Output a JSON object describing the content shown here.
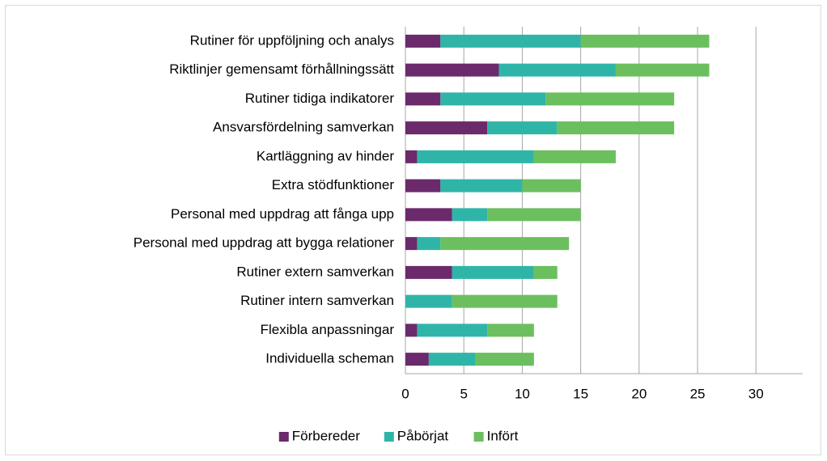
{
  "chart_data": {
    "type": "hbar_stacked",
    "categories": [
      "Rutiner för uppföljning och analys",
      "Riktlinjer gemensamt förhållningssätt",
      "Rutiner tidiga indikatorer",
      "Ansvarsfördelning samverkan",
      "Kartläggning av hinder",
      "Extra stödfunktioner",
      "Personal med uppdrag att fånga upp",
      "Personal med uppdrag att bygga relationer",
      "Rutiner extern samverkan",
      "Rutiner intern samverkan",
      "Flexibla anpassningar",
      "Individuella scheman"
    ],
    "series": [
      {
        "name": "Förbereder",
        "color": "#6b2a6b",
        "values": [
          3,
          8,
          3,
          7,
          1,
          3,
          4,
          1,
          4,
          0,
          1,
          2
        ]
      },
      {
        "name": "Påbörjat",
        "color": "#2fb5a8",
        "values": [
          12,
          10,
          9,
          6,
          10,
          7,
          3,
          2,
          7,
          4,
          6,
          4
        ]
      },
      {
        "name": "Infört",
        "color": "#6cbf5e",
        "values": [
          11,
          8,
          11,
          10,
          7,
          5,
          8,
          11,
          2,
          9,
          4,
          5
        ]
      }
    ],
    "xlim": [
      0,
      34
    ],
    "xticks": [
      0,
      5,
      10,
      15,
      20,
      25,
      30
    ],
    "grid": true,
    "legend": "bottom"
  }
}
